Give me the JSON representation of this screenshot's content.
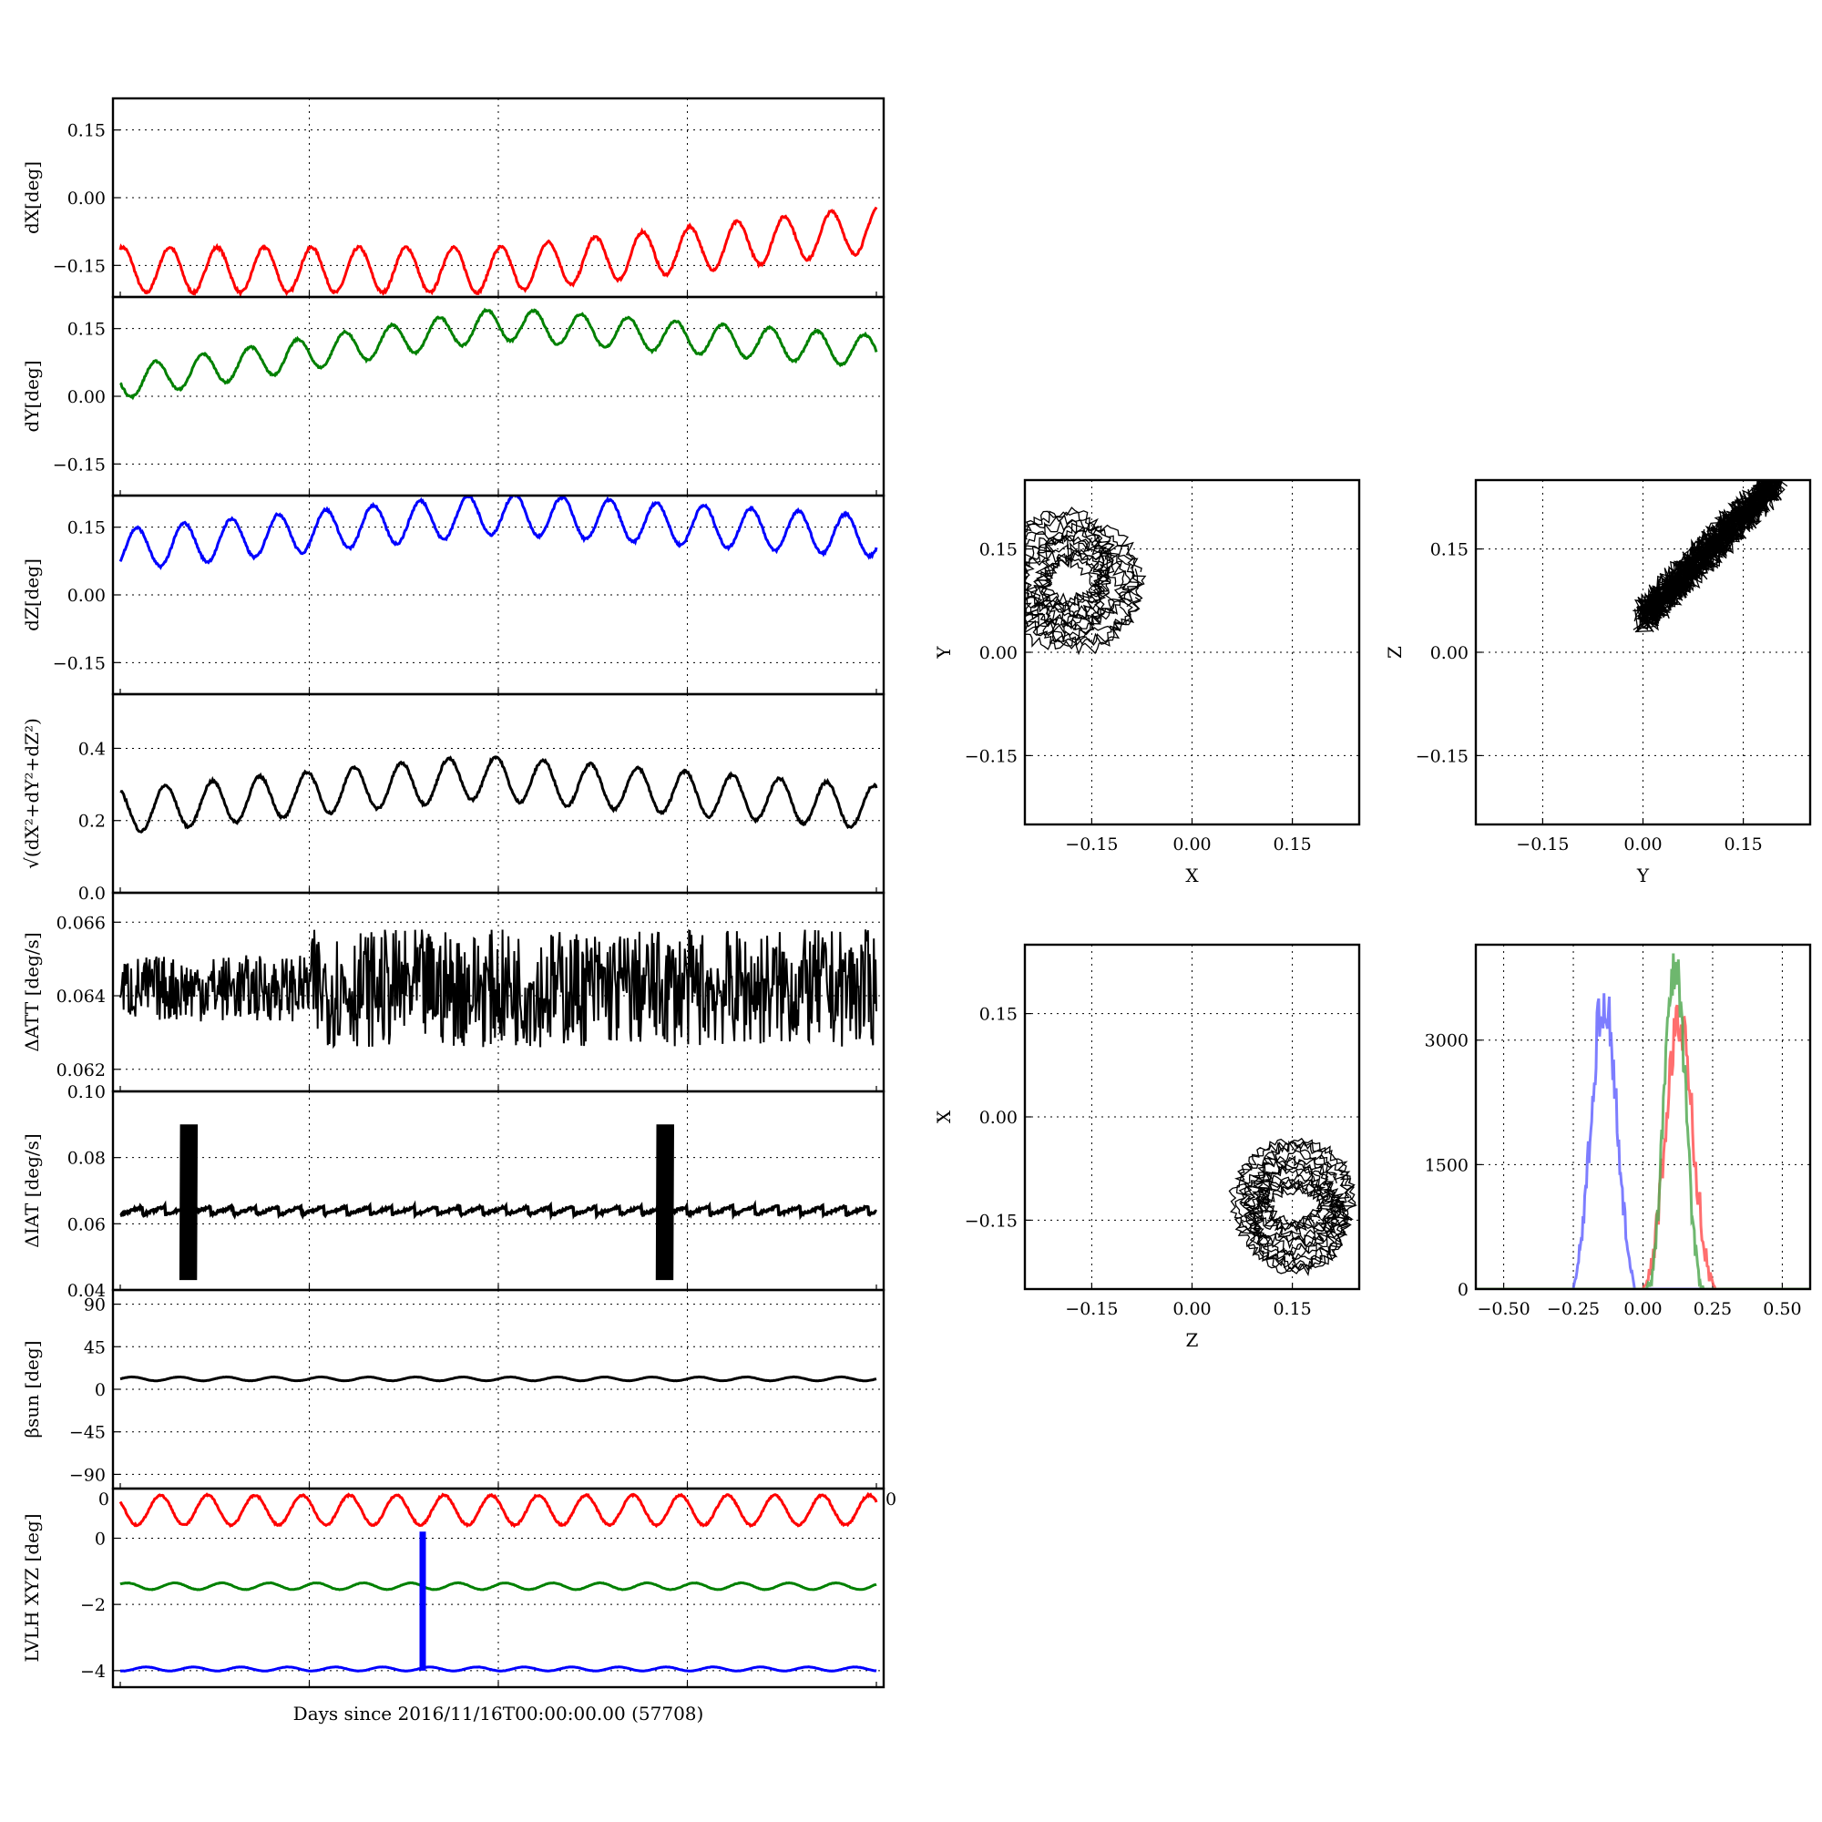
{
  "figure": {
    "xlabel_bottom": "Days since 2016/11/16T00:00:00.00 (57708)"
  },
  "chart_data": [
    {
      "id": "dx",
      "type": "line",
      "ylabel": "dX[deg]",
      "ylim": [
        -0.22,
        0.22
      ],
      "yticks": [
        0.15,
        0.0,
        -0.15
      ],
      "ytick_labels": [
        "0.15",
        "0.00",
        "−0.15"
      ],
      "xlim": [
        0,
        20
      ],
      "grid": true,
      "series": [
        {
          "color": "#ff0000",
          "kind": "sine",
          "mean": -0.16,
          "amp": 0.05,
          "period": 1.25,
          "phase": 0.2,
          "trend": 0.009,
          "trend_start": 10
        }
      ]
    },
    {
      "id": "dy",
      "type": "line",
      "ylabel": "dY[deg]",
      "ylim": [
        -0.22,
        0.22
      ],
      "yticks": [
        0.15,
        0.0,
        -0.15
      ],
      "ytick_labels": [
        "0.15",
        "0.00",
        "−0.15"
      ],
      "xlim": [
        0,
        20
      ],
      "grid": true,
      "series": [
        {
          "color": "#008000",
          "kind": "sine",
          "mean": 0.03,
          "amp": 0.035,
          "period": 1.25,
          "phase": 0.5,
          "trend": 0.013,
          "trend_end": 10,
          "trend_back": -0.006
        }
      ]
    },
    {
      "id": "dz",
      "type": "line",
      "ylabel": "dZ[deg]",
      "ylim": [
        -0.22,
        0.22
      ],
      "yticks": [
        0.15,
        0.0,
        -0.15
      ],
      "ytick_labels": [
        "0.15",
        "0.00",
        "−0.15"
      ],
      "xlim": [
        0,
        20
      ],
      "grid": true,
      "series": [
        {
          "color": "#0000ff",
          "kind": "sine",
          "mean": 0.1,
          "amp": 0.045,
          "period": 1.25,
          "phase": 0.9,
          "trend": 0.008,
          "trend_end": 10,
          "trend_back": -0.005
        }
      ]
    },
    {
      "id": "dr",
      "type": "line",
      "ylabel": "√(dX²+dY²+dZ²)",
      "ylim": [
        0.0,
        0.55
      ],
      "yticks": [
        0.4,
        0.2,
        0.0
      ],
      "ytick_labels": [
        "0.4",
        "0.2",
        "0.0"
      ],
      "xlim": [
        0,
        20
      ],
      "grid": true,
      "series": [
        {
          "color": "#000000",
          "kind": "sine",
          "mean": 0.225,
          "amp": 0.06,
          "period": 1.25,
          "phase": 0.3,
          "trend": 0.01,
          "trend_end": 9.5,
          "trend_back": -0.008
        }
      ]
    },
    {
      "id": "datt",
      "type": "line",
      "ylabel": "ΔATT [deg/s]",
      "ylim": [
        0.0614,
        0.0668
      ],
      "yticks": [
        0.066,
        0.064,
        0.062
      ],
      "ytick_labels": [
        "0.066",
        "0.064",
        "0.062"
      ],
      "xlim": [
        0,
        20
      ],
      "grid": true,
      "series": [
        {
          "color": "#000000",
          "kind": "noise",
          "mean": 0.0642,
          "amp": 0.0009,
          "amp2": 0.0016,
          "switch": 5
        }
      ]
    },
    {
      "id": "diat",
      "type": "line",
      "ylabel": "ΔIAT [deg/s]",
      "ylim": [
        0.04,
        0.1
      ],
      "yticks": [
        0.1,
        0.08,
        0.06,
        0.04
      ],
      "ytick_labels": [
        "0.10",
        "0.08",
        "0.06",
        "0.04"
      ],
      "xlim": [
        0,
        20
      ],
      "grid": true,
      "series": [
        {
          "color": "#000000",
          "kind": "sawtooth",
          "mean": 0.064,
          "amp": 0.0025,
          "spikes": [
            1.6,
            14.2
          ],
          "spike_lo": 0.043,
          "spike_hi": 0.09
        }
      ]
    },
    {
      "id": "beta",
      "type": "line",
      "ylabel": "βsun [deg]",
      "ylim": [
        -105,
        105
      ],
      "yticks": [
        90,
        45,
        0,
        -45,
        -90
      ],
      "ytick_labels": [
        "90",
        "45",
        "0",
        "−45",
        "−90"
      ],
      "xlim": [
        0,
        20
      ],
      "grid": true,
      "series": [
        {
          "color": "#000000",
          "kind": "sine",
          "mean": 11,
          "amp": 2,
          "period": 1.25,
          "phase": 0
        }
      ]
    },
    {
      "id": "lvlh",
      "type": "line",
      "ylabel": "LVLH XYZ [deg]",
      "ylim": [
        -4.5,
        1.5
      ],
      "yticks": [
        0,
        -2,
        -4
      ],
      "ytick_labels": [
        "0",
        "−2",
        "−4"
      ],
      "xlim": [
        0,
        20
      ],
      "grid": true,
      "corner_labels": [
        "0",
        "0"
      ],
      "series": [
        {
          "color": "#ff0000",
          "kind": "sine",
          "mean": 0.85,
          "amp": 0.45,
          "period": 1.25,
          "phase": 0.4
        },
        {
          "color": "#008000",
          "kind": "sine",
          "mean": -1.45,
          "amp": 0.1,
          "period": 1.25,
          "phase": 0.1
        },
        {
          "color": "#0000ff",
          "kind": "sine",
          "mean": -3.95,
          "amp": 0.06,
          "period": 1.25,
          "phase": 0.7
        }
      ],
      "marker": {
        "x": 8.0,
        "y_from": 0.2,
        "y_to": -4.0,
        "color": "#0000ff"
      }
    },
    {
      "id": "xy",
      "type": "scatter",
      "xlabel": "X",
      "ylabel": "Y",
      "xlim": [
        -0.25,
        0.25
      ],
      "ylim": [
        -0.25,
        0.25
      ],
      "xticks": [
        -0.15,
        0.0,
        0.15
      ],
      "xtick_labels": [
        "−0.15",
        "0.00",
        "0.15"
      ],
      "yticks": [
        0.15,
        0.0,
        -0.15
      ],
      "ytick_labels": [
        "0.15",
        "0.00",
        "−0.15"
      ],
      "grid": true,
      "loops": {
        "cx": -0.18,
        "cy": 0.1,
        "r": 0.07,
        "spread_x": 0.08,
        "spread_y": 0.08,
        "count": 16
      }
    },
    {
      "id": "yz",
      "type": "scatter",
      "xlabel": "Y",
      "ylabel": "Z",
      "xlim": [
        -0.25,
        0.25
      ],
      "ylim": [
        -0.25,
        0.25
      ],
      "xticks": [
        -0.15,
        0.0,
        0.15
      ],
      "xtick_labels": [
        "−0.15",
        "0.00",
        "0.15"
      ],
      "yticks": [
        0.15,
        0.0,
        -0.15
      ],
      "ytick_labels": [
        "0.15",
        "0.00",
        "−0.15"
      ],
      "grid": true,
      "band": {
        "x0": 0.0,
        "y0": 0.05,
        "x1": 0.2,
        "y1": 0.25,
        "width": 0.035,
        "count": 14
      }
    },
    {
      "id": "zx",
      "type": "scatter",
      "xlabel": "Z",
      "ylabel": "X",
      "xlim": [
        -0.25,
        0.25
      ],
      "ylim": [
        -0.25,
        0.25
      ],
      "xticks": [
        -0.15,
        0.0,
        0.15
      ],
      "xtick_labels": [
        "−0.15",
        "0.00",
        "0.15"
      ],
      "yticks": [
        0.15,
        0.0,
        -0.15
      ],
      "ytick_labels": [
        "0.15",
        "0.00",
        "−0.15"
      ],
      "grid": true,
      "loops": {
        "cx": 0.15,
        "cy": -0.13,
        "r": 0.065,
        "spread_x": 0.05,
        "spread_y": 0.08,
        "count": 16
      }
    },
    {
      "id": "hist",
      "type": "bar",
      "xlim": [
        -0.6,
        0.6
      ],
      "ylim": [
        0,
        4150
      ],
      "xticks": [
        -0.5,
        -0.25,
        0.0,
        0.25,
        0.5
      ],
      "xtick_labels": [
        "−0.50",
        "−0.25",
        "0.00",
        "0.25",
        "0.50"
      ],
      "yticks": [
        3000,
        1500,
        0
      ],
      "ytick_labels": [
        "3000",
        "1500",
        "0"
      ],
      "grid": true,
      "series": [
        {
          "color": "#6666ff",
          "peaks": [
            [
              -0.25,
              -0.03
            ],
            [
              1200,
              3500
            ]
          ]
        },
        {
          "color": "#ff5555",
          "peaks": [
            [
              0.0,
              0.26
            ],
            [
              500,
              3200
            ]
          ]
        },
        {
          "color": "#55aa55",
          "peaks": [
            [
              0.01,
              0.22
            ],
            [
              200,
              3900
            ]
          ]
        }
      ]
    }
  ]
}
